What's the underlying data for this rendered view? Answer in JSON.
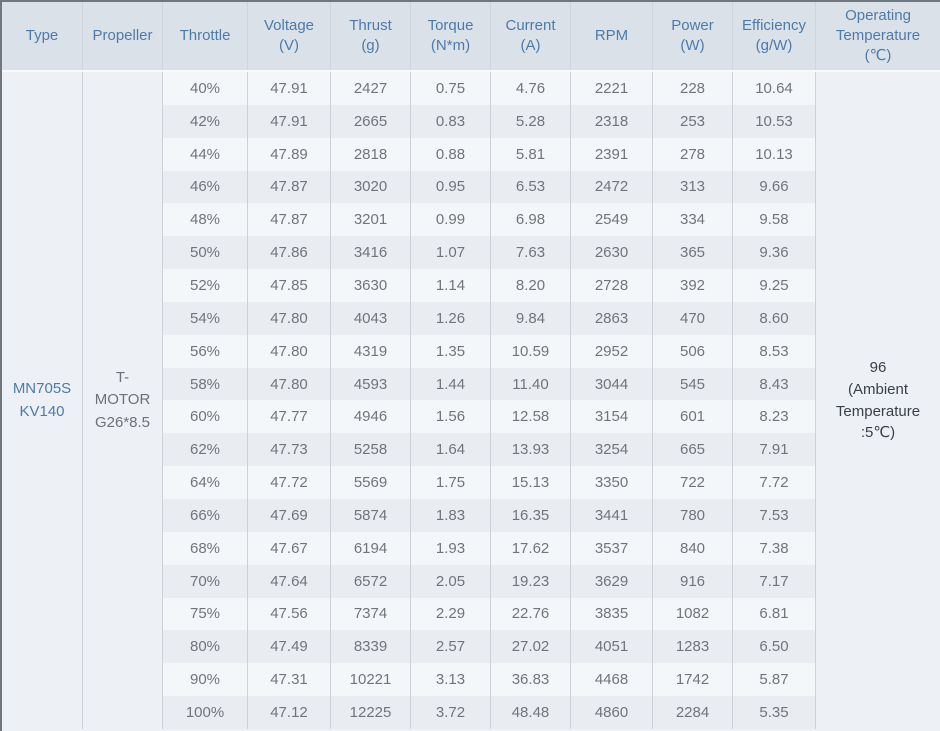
{
  "table": {
    "columns": [
      {
        "id": "type",
        "label": "Type"
      },
      {
        "id": "propeller",
        "label": "Propeller"
      },
      {
        "id": "throttle",
        "label": "Throttle"
      },
      {
        "id": "voltage",
        "label": "Voltage\n(V)"
      },
      {
        "id": "thrust",
        "label": "Thrust\n(g)"
      },
      {
        "id": "torque",
        "label": "Torque\n(N*m)"
      },
      {
        "id": "current",
        "label": "Current\n(A)"
      },
      {
        "id": "rpm",
        "label": "RPM"
      },
      {
        "id": "power",
        "label": "Power\n(W)"
      },
      {
        "id": "efficiency",
        "label": "Efficiency\n(g/W)"
      },
      {
        "id": "operating_temperature",
        "label": "Operating\nTemperature\n(℃)"
      }
    ],
    "type": "MN705S\nKV140",
    "propeller": "T-\nMOTOR\nG26*8.5",
    "operating_temperature": "96\n(Ambient\nTemperature\n:5℃)",
    "rows": [
      {
        "throttle": "40%",
        "voltage": "47.91",
        "thrust": "2427",
        "torque": "0.75",
        "current": "4.76",
        "rpm": "2221",
        "power": "228",
        "efficiency": "10.64"
      },
      {
        "throttle": "42%",
        "voltage": "47.91",
        "thrust": "2665",
        "torque": "0.83",
        "current": "5.28",
        "rpm": "2318",
        "power": "253",
        "efficiency": "10.53"
      },
      {
        "throttle": "44%",
        "voltage": "47.89",
        "thrust": "2818",
        "torque": "0.88",
        "current": "5.81",
        "rpm": "2391",
        "power": "278",
        "efficiency": "10.13"
      },
      {
        "throttle": "46%",
        "voltage": "47.87",
        "thrust": "3020",
        "torque": "0.95",
        "current": "6.53",
        "rpm": "2472",
        "power": "313",
        "efficiency": "9.66"
      },
      {
        "throttle": "48%",
        "voltage": "47.87",
        "thrust": "3201",
        "torque": "0.99",
        "current": "6.98",
        "rpm": "2549",
        "power": "334",
        "efficiency": "9.58"
      },
      {
        "throttle": "50%",
        "voltage": "47.86",
        "thrust": "3416",
        "torque": "1.07",
        "current": "7.63",
        "rpm": "2630",
        "power": "365",
        "efficiency": "9.36"
      },
      {
        "throttle": "52%",
        "voltage": "47.85",
        "thrust": "3630",
        "torque": "1.14",
        "current": "8.20",
        "rpm": "2728",
        "power": "392",
        "efficiency": "9.25"
      },
      {
        "throttle": "54%",
        "voltage": "47.80",
        "thrust": "4043",
        "torque": "1.26",
        "current": "9.84",
        "rpm": "2863",
        "power": "470",
        "efficiency": "8.60"
      },
      {
        "throttle": "56%",
        "voltage": "47.80",
        "thrust": "4319",
        "torque": "1.35",
        "current": "10.59",
        "rpm": "2952",
        "power": "506",
        "efficiency": "8.53"
      },
      {
        "throttle": "58%",
        "voltage": "47.80",
        "thrust": "4593",
        "torque": "1.44",
        "current": "11.40",
        "rpm": "3044",
        "power": "545",
        "efficiency": "8.43"
      },
      {
        "throttle": "60%",
        "voltage": "47.77",
        "thrust": "4946",
        "torque": "1.56",
        "current": "12.58",
        "rpm": "3154",
        "power": "601",
        "efficiency": "8.23"
      },
      {
        "throttle": "62%",
        "voltage": "47.73",
        "thrust": "5258",
        "torque": "1.64",
        "current": "13.93",
        "rpm": "3254",
        "power": "665",
        "efficiency": "7.91"
      },
      {
        "throttle": "64%",
        "voltage": "47.72",
        "thrust": "5569",
        "torque": "1.75",
        "current": "15.13",
        "rpm": "3350",
        "power": "722",
        "efficiency": "7.72"
      },
      {
        "throttle": "66%",
        "voltage": "47.69",
        "thrust": "5874",
        "torque": "1.83",
        "current": "16.35",
        "rpm": "3441",
        "power": "780",
        "efficiency": "7.53"
      },
      {
        "throttle": "68%",
        "voltage": "47.67",
        "thrust": "6194",
        "torque": "1.93",
        "current": "17.62",
        "rpm": "3537",
        "power": "840",
        "efficiency": "7.38"
      },
      {
        "throttle": "70%",
        "voltage": "47.64",
        "thrust": "6572",
        "torque": "2.05",
        "current": "19.23",
        "rpm": "3629",
        "power": "916",
        "efficiency": "7.17"
      },
      {
        "throttle": "75%",
        "voltage": "47.56",
        "thrust": "7374",
        "torque": "2.29",
        "current": "22.76",
        "rpm": "3835",
        "power": "1082",
        "efficiency": "6.81"
      },
      {
        "throttle": "80%",
        "voltage": "47.49",
        "thrust": "8339",
        "torque": "2.57",
        "current": "27.02",
        "rpm": "4051",
        "power": "1283",
        "efficiency": "6.50"
      },
      {
        "throttle": "90%",
        "voltage": "47.31",
        "thrust": "10221",
        "torque": "3.13",
        "current": "36.83",
        "rpm": "4468",
        "power": "1742",
        "efficiency": "5.87"
      },
      {
        "throttle": "100%",
        "voltage": "47.12",
        "thrust": "12225",
        "torque": "3.72",
        "current": "48.48",
        "rpm": "4860",
        "power": "2284",
        "efficiency": "5.35"
      }
    ]
  },
  "colors": {
    "header_bg": "#dbe1e9",
    "header_text": "#4d7ba9",
    "row_light_bg": "#f4f7fa",
    "row_dark_bg": "#e9edf2",
    "merged_cell_bg": "#edf1f6",
    "grid_line": "#ccd1d8",
    "data_text": "#71757b",
    "temperature_text": "#3b4046",
    "outer_border": "#71777f"
  }
}
